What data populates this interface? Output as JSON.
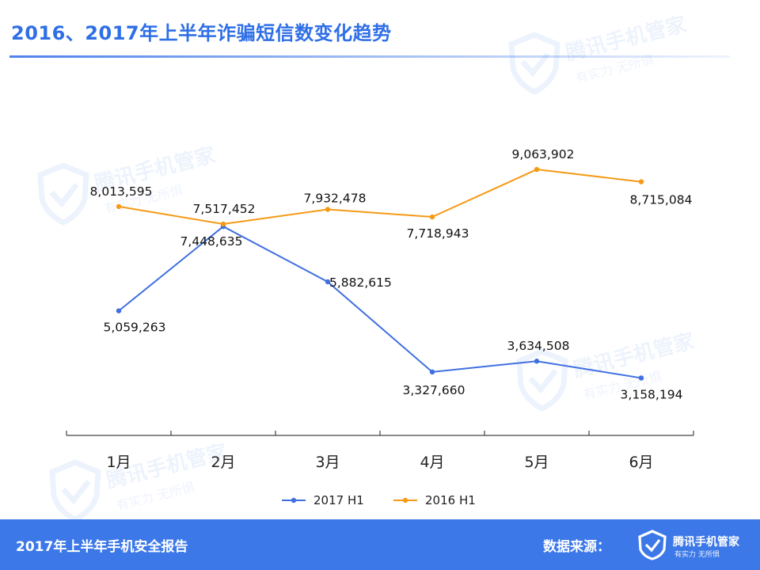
{
  "title": "2016、2017年上半年诈骗短信数变化趋势",
  "watermark": {
    "brand": "腾讯手机管家",
    "slogan": "有实力  无所惧"
  },
  "footer": {
    "report": "2017年上半年手机安全报告",
    "source_label": "数据来源：",
    "brand": "腾讯手机管家",
    "slogan": "有实力  无所惧"
  },
  "colors": {
    "accent": "#3c78e8",
    "series_2017": "#3f6fe0",
    "series_2016": "#f59a16"
  },
  "chart_data": {
    "type": "line",
    "title": "2016、2017年上半年诈骗短信数变化趋势",
    "xlabel": "",
    "ylabel": "",
    "categories": [
      "1月",
      "2月",
      "3月",
      "4月",
      "5月",
      "6月"
    ],
    "series": [
      {
        "name": "2017 H1",
        "values": [
          5059263,
          7448635,
          5882615,
          3327660,
          3634508,
          3158194
        ],
        "labels": [
          "5,059,263",
          "7,448,635",
          "5,882,615",
          "3,327,660",
          "3,634,508",
          "3,158,194"
        ]
      },
      {
        "name": "2016 H1",
        "values": [
          8013595,
          7517452,
          7932478,
          7718943,
          9063902,
          8715084
        ],
        "labels": [
          "8,013,595",
          "7,517,452",
          "7,932,478",
          "7,718,943",
          "9,063,902",
          "8,715,084"
        ]
      }
    ],
    "grid": false,
    "legend": "bottom"
  }
}
